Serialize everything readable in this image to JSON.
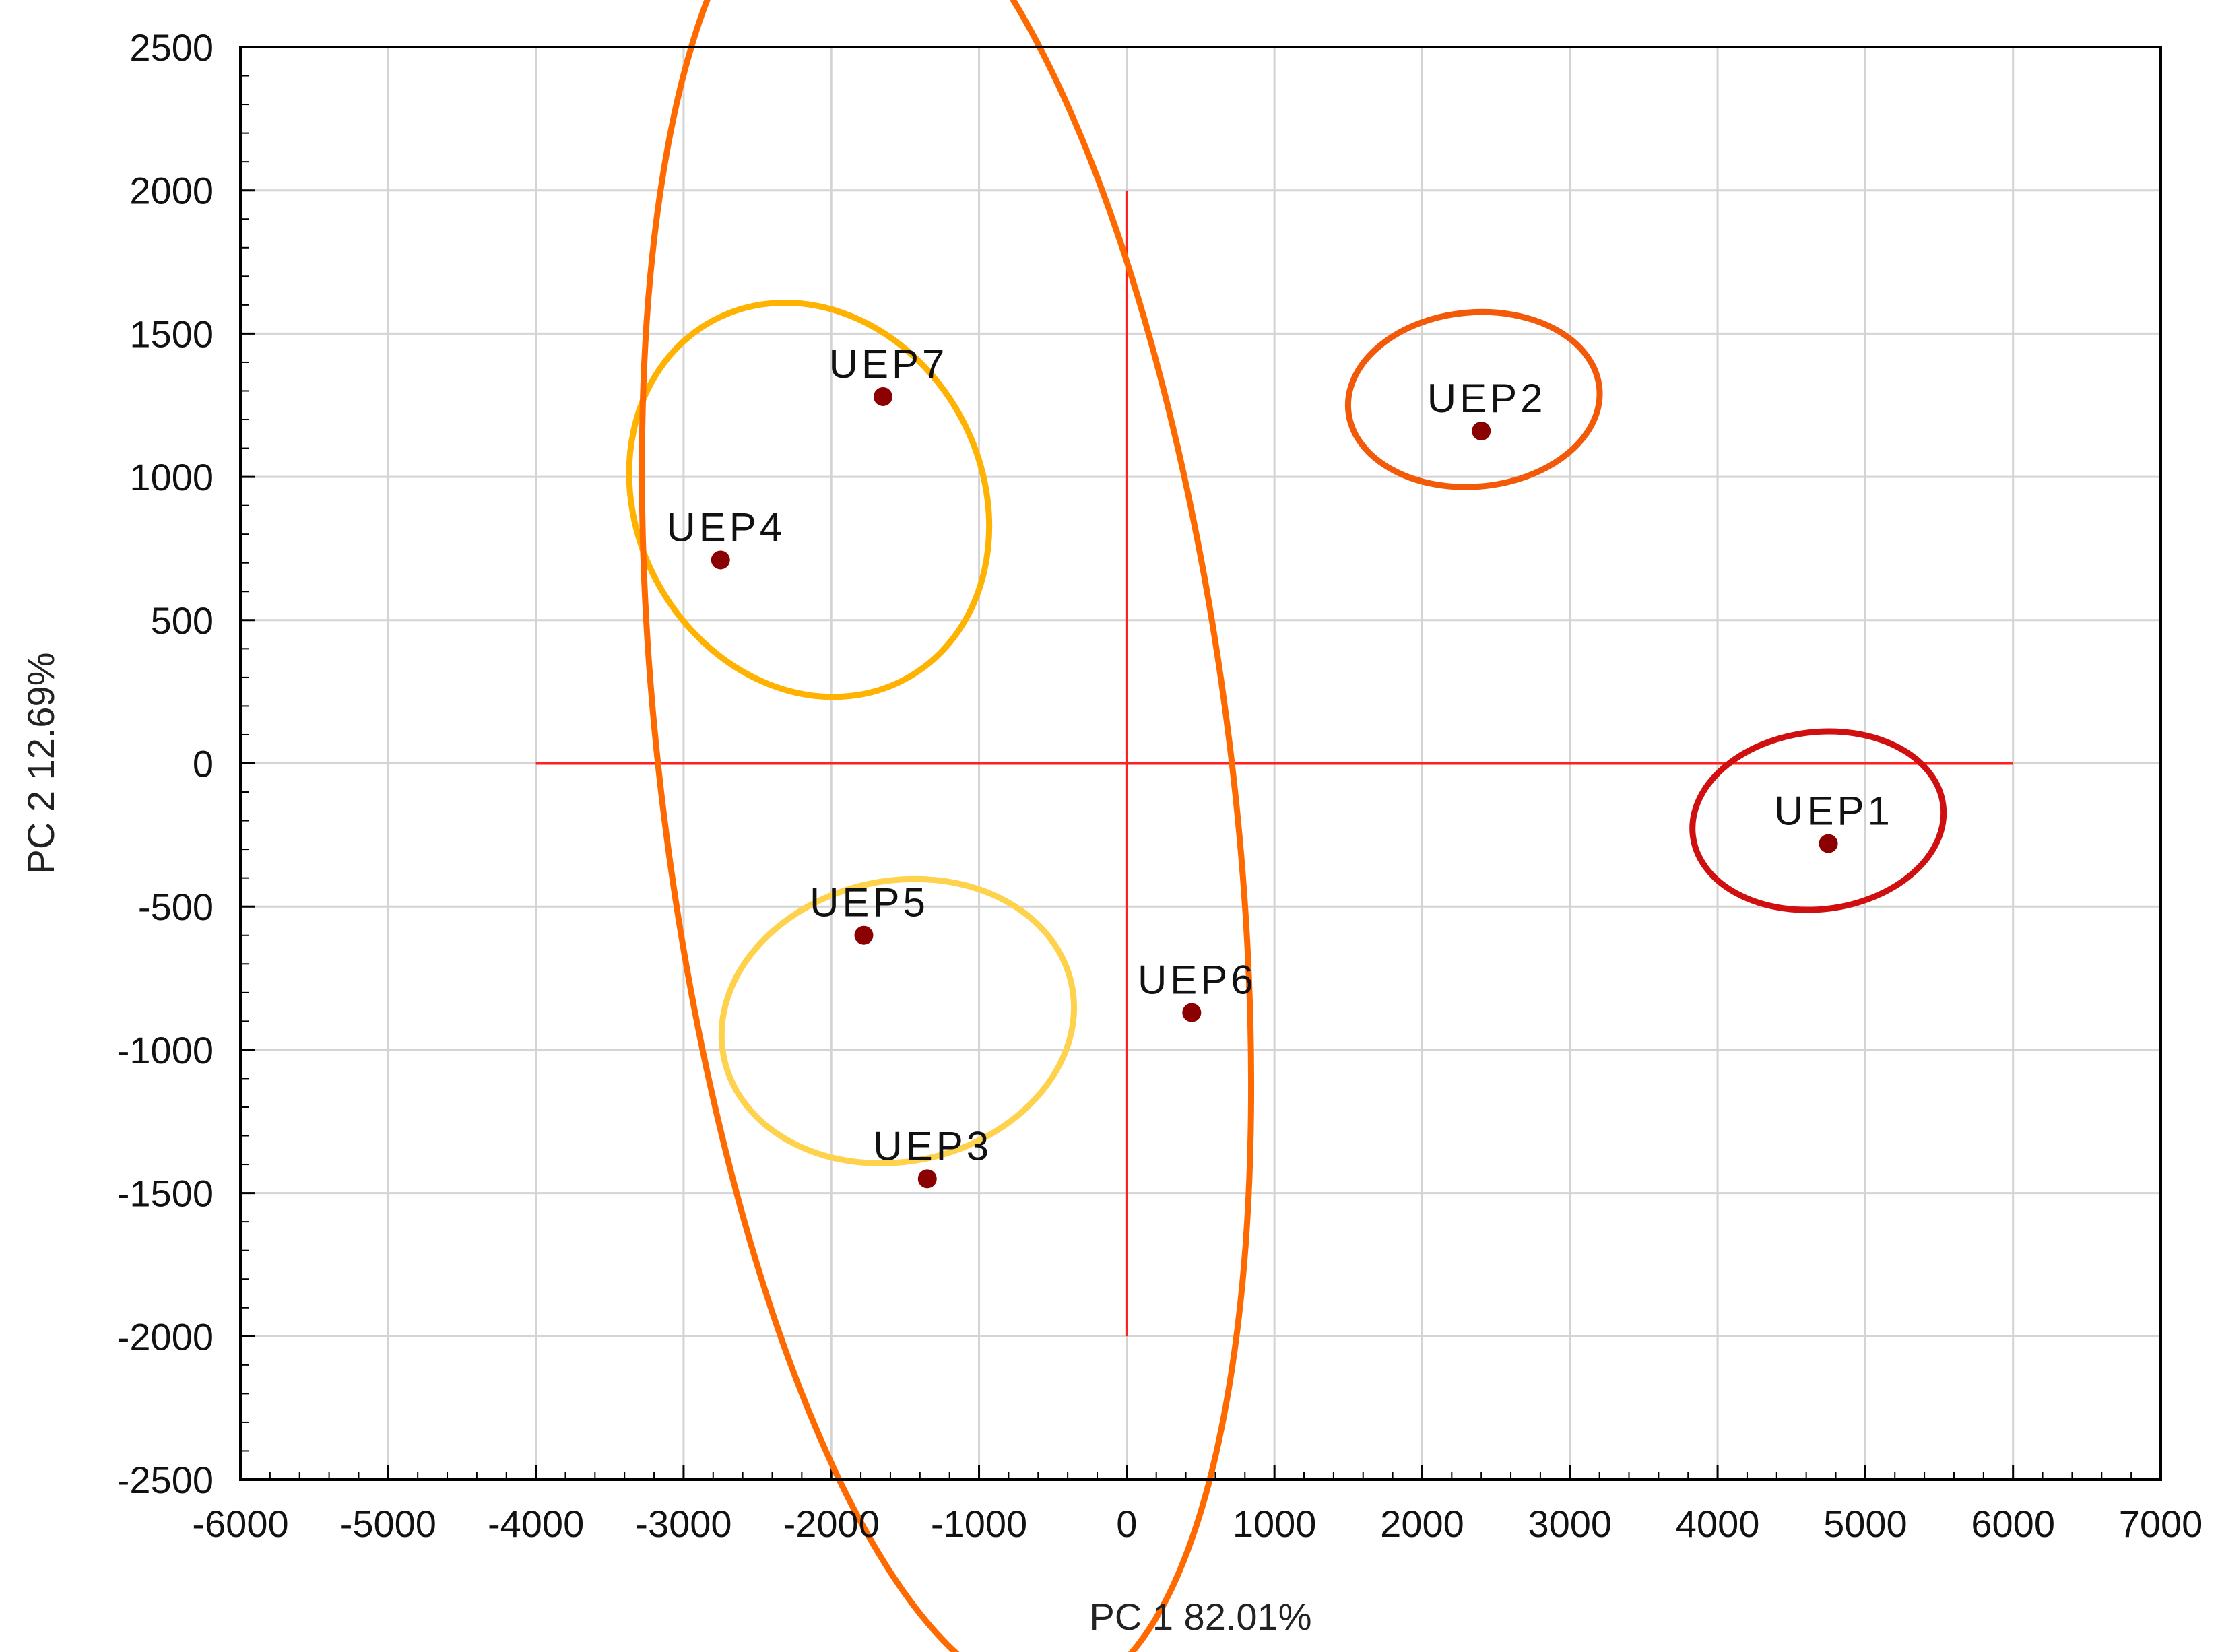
{
  "chart_data": {
    "type": "scatter",
    "title": "",
    "xlabel": "PC 1 82.01%",
    "ylabel": "PC 2 12.69%",
    "xlim": [
      -6000,
      7000
    ],
    "ylim": [
      -2500,
      2500
    ],
    "x_ticks": [
      -6000,
      -5000,
      -4000,
      -3000,
      -2000,
      -1000,
      0,
      1000,
      2000,
      3000,
      4000,
      5000,
      6000,
      7000
    ],
    "y_ticks": [
      -2500,
      -2000,
      -1500,
      -1000,
      -500,
      0,
      500,
      1000,
      1500,
      2000,
      2500
    ],
    "grid": true,
    "marker_color": "#8b0000",
    "reference_lines": {
      "color": "#ff2020",
      "horizontal": {
        "y": 0,
        "x_from": -4000,
        "x_to": 6000
      },
      "vertical": {
        "x": 0,
        "y_from": -2000,
        "y_to": 2000
      }
    },
    "points": [
      {
        "label": "UEP1",
        "x": 4750,
        "y": -280
      },
      {
        "label": "UEP2",
        "x": 2400,
        "y": 1160
      },
      {
        "label": "UEP3",
        "x": -1350,
        "y": -1450
      },
      {
        "label": "UEP4",
        "x": -2750,
        "y": 710
      },
      {
        "label": "UEP5",
        "x": -1780,
        "y": -600
      },
      {
        "label": "UEP6",
        "x": 440,
        "y": -870
      },
      {
        "label": "UEP7",
        "x": -1650,
        "y": 1280
      }
    ],
    "clusters": [
      {
        "members": [
          "UEP4",
          "UEP7"
        ],
        "color": "#ffb300",
        "cx": -2150,
        "cy": 920,
        "rx": 1170,
        "ry": 710,
        "rotation": -28
      },
      {
        "members": [
          "UEP3",
          "UEP5"
        ],
        "color": "#ffd24d",
        "cx": -1550,
        "cy": -900,
        "rx": 950,
        "ry": 620,
        "rotation": 78
      },
      {
        "members": [
          "UEP3",
          "UEP4",
          "UEP5",
          "UEP6",
          "UEP7"
        ],
        "color": "#ff6a00",
        "cx": -1220,
        "cy": -50,
        "rx": 1930,
        "ry": 3230,
        "rotation": -7
      },
      {
        "members": [
          "UEP2"
        ],
        "color": "#f25a0a",
        "cx": 2350,
        "cy": 1270,
        "rx": 590,
        "ry": 440,
        "rotation": 85
      },
      {
        "members": [
          "UEP1"
        ],
        "color": "#d01010",
        "cx": 4680,
        "cy": -200,
        "rx": 600,
        "ry": 440,
        "rotation": 83
      }
    ]
  }
}
